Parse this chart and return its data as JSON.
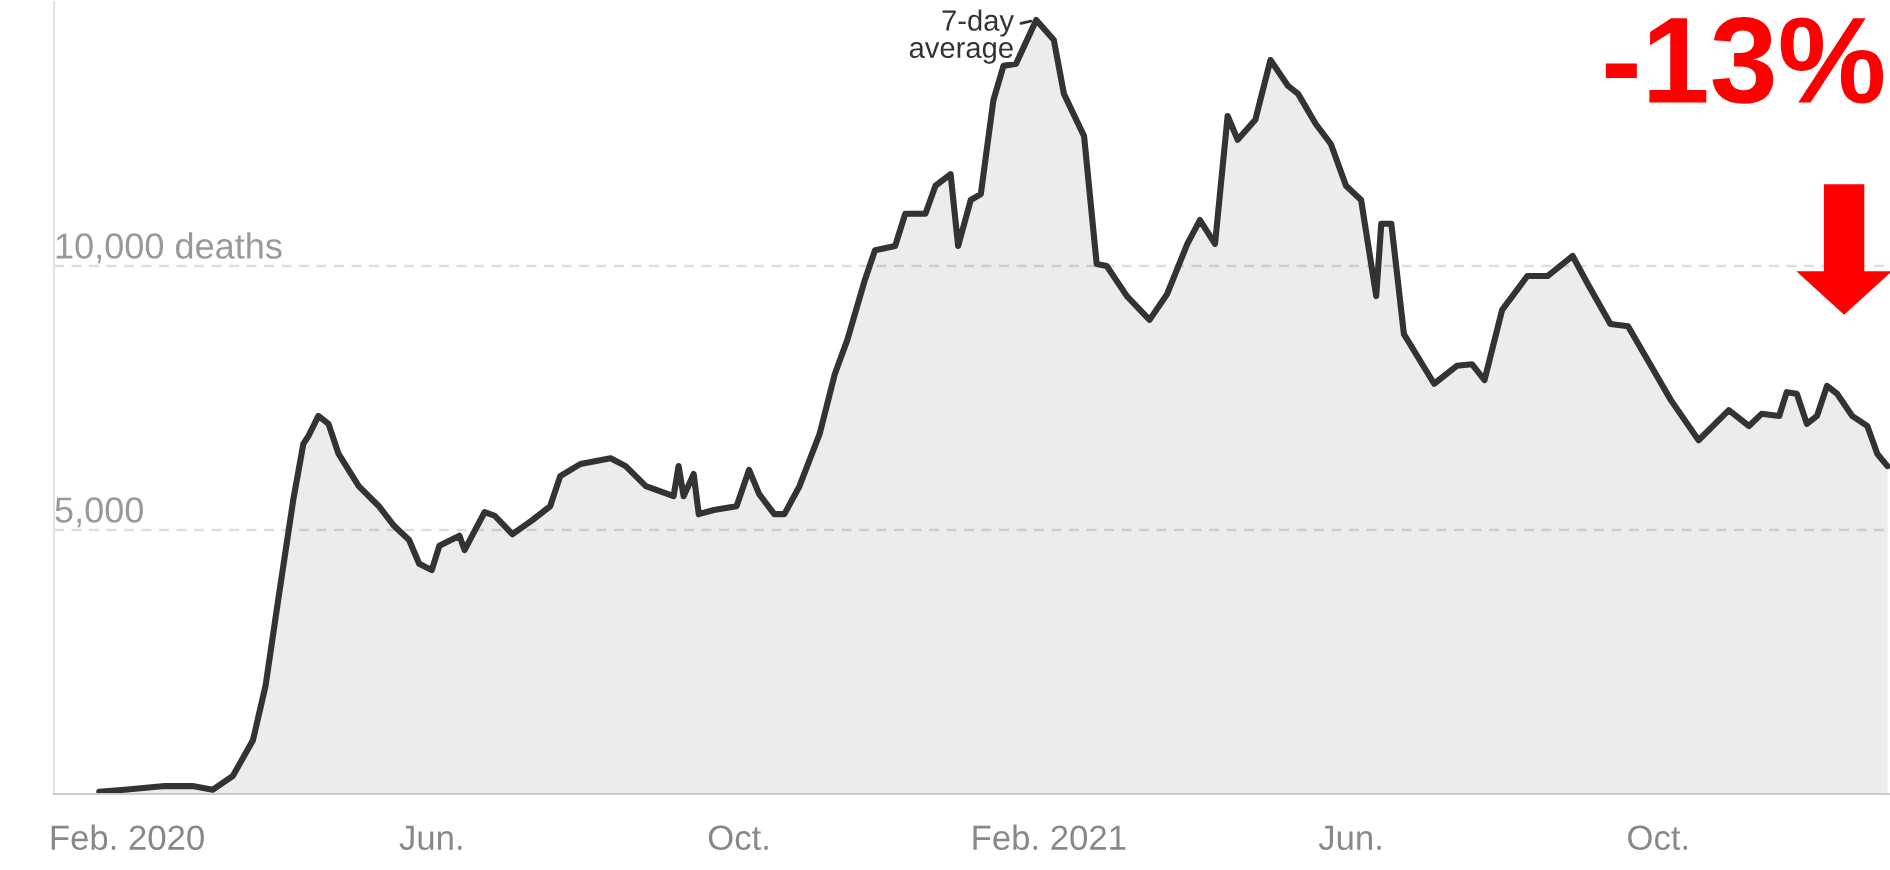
{
  "chart_data": {
    "type": "area",
    "x": [
      "2020-01-21",
      "2020-01-31",
      "2020-02-16",
      "2020-02-27",
      "2020-03-06",
      "2020-03-14",
      "2020-03-22",
      "2020-03-27",
      "2020-04-01",
      "2020-04-07",
      "2020-04-11",
      "2020-04-13",
      "2020-04-17",
      "2020-04-21",
      "2020-04-25",
      "2020-05-03",
      "2020-05-11",
      "2020-05-17",
      "2020-05-23",
      "2020-05-27",
      "2020-06-01",
      "2020-06-04",
      "2020-06-12",
      "2020-06-14",
      "2020-06-22",
      "2020-06-26",
      "2020-07-03",
      "2020-07-11",
      "2020-07-18",
      "2020-07-22",
      "2020-07-30",
      "2020-08-11",
      "2020-08-17",
      "2020-08-25",
      "2020-09-05",
      "2020-09-07",
      "2020-09-09",
      "2020-09-13",
      "2020-09-15",
      "2020-09-21",
      "2020-09-30",
      "2020-10-05",
      "2020-10-09",
      "2020-10-15",
      "2020-10-19",
      "2020-10-25",
      "2020-11-02",
      "2020-11-08",
      "2020-11-13",
      "2020-11-20",
      "2020-11-24",
      "2020-12-02",
      "2020-12-06",
      "2020-12-14",
      "2020-12-18",
      "2020-12-24",
      "2020-12-27",
      "2021-01-01",
      "2021-01-05",
      "2021-01-10",
      "2021-01-14",
      "2021-01-19",
      "2021-01-27",
      "2021-02-03",
      "2021-02-07",
      "2021-02-15",
      "2021-02-20",
      "2021-02-24",
      "2021-03-04",
      "2021-03-13",
      "2021-03-20",
      "2021-03-28",
      "2021-04-02",
      "2021-04-08",
      "2021-04-13",
      "2021-04-17",
      "2021-04-24",
      "2021-04-30",
      "2021-05-07",
      "2021-05-11",
      "2021-05-18",
      "2021-05-24",
      "2021-05-30",
      "2021-06-05",
      "2021-06-11",
      "2021-06-13",
      "2021-06-17",
      "2021-06-22",
      "2021-07-04",
      "2021-07-13",
      "2021-07-19",
      "2021-07-24",
      "2021-07-31",
      "2021-08-10",
      "2021-08-18",
      "2021-08-28",
      "2021-09-03",
      "2021-09-12",
      "2021-09-19",
      "2021-10-06",
      "2021-10-17",
      "2021-10-29",
      "2021-11-06",
      "2021-11-11",
      "2021-11-18",
      "2021-11-21",
      "2021-11-25",
      "2021-11-29",
      "2021-12-03",
      "2021-12-07",
      "2021-12-11",
      "2021-12-17",
      "2021-12-23",
      "2021-12-27",
      "2021-12-31"
    ],
    "series": [
      {
        "color": "#333333",
        "values": [
          40,
          80,
          150,
          150,
          80,
          340,
          1020,
          2050,
          3670,
          5570,
          6630,
          6780,
          7160,
          7010,
          6440,
          5830,
          5450,
          5080,
          4810,
          4360,
          4240,
          4700,
          4890,
          4620,
          5340,
          5270,
          4920,
          5190,
          5450,
          6020,
          6250,
          6360,
          6210,
          5830,
          5640,
          6210,
          5640,
          6060,
          5300,
          5380,
          5450,
          6140,
          5680,
          5300,
          5300,
          5830,
          6820,
          7950,
          8600,
          9740,
          10300,
          10380,
          10990,
          10990,
          11520,
          11740,
          10380,
          11250,
          11360,
          13140,
          13790,
          13830,
          14660,
          14280,
          13260,
          12460,
          10040,
          10000,
          9430,
          8980,
          9470,
          10420,
          10870,
          10420,
          12840,
          12390,
          12770,
          13900,
          13410,
          13260,
          12690,
          12310,
          11520,
          11250,
          9430,
          10800,
          10800,
          8710,
          7770,
          8110,
          8140,
          7840,
          9170,
          9810,
          9810,
          10190,
          9660,
          8900,
          8860,
          7460,
          6700,
          7270,
          6970,
          7200,
          7160,
          7610,
          7580,
          7010,
          7160,
          7730,
          7580,
          7160,
          6970,
          6440,
          6210
        ]
      }
    ],
    "xlim": [
      "2020-01-03",
      "2022-01-01"
    ],
    "xticks": [
      {
        "value": "2020-02-01",
        "label": "Feb. 2020"
      },
      {
        "value": "2020-06-01",
        "label": "Jun."
      },
      {
        "value": "2020-10-01",
        "label": "Oct."
      },
      {
        "value": "2021-02-01",
        "label": "Feb. 2021"
      },
      {
        "value": "2021-06-01",
        "label": "Jun."
      },
      {
        "value": "2021-10-01",
        "label": "Oct."
      }
    ],
    "ylim": [
      0,
      15000
    ],
    "yticks": [
      {
        "value": 5000,
        "label": "5,000"
      },
      {
        "value": 10000,
        "label": "10,000 deaths"
      }
    ],
    "grid": "y",
    "legend": false,
    "annotations": [
      {
        "text": "7-day\naverage",
        "x": "2021-01-27",
        "y": 14660
      },
      "-13%"
    ]
  }
}
